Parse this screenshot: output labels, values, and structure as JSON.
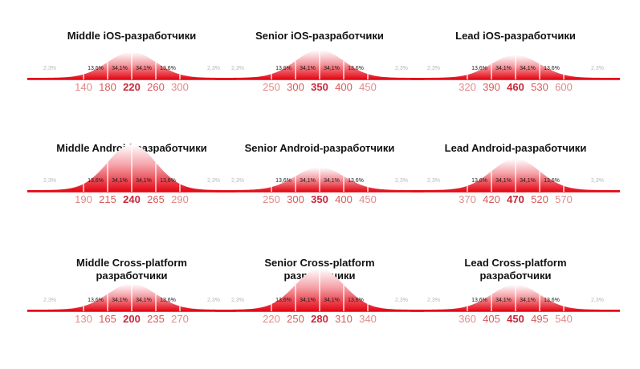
{
  "accent": "#e30613",
  "chart_data": [
    {
      "type": "area",
      "title_prefix": "Middle",
      "title_rest": " iOS-разработчики",
      "title_line2": "",
      "x_ticks": [
        "140",
        "180",
        "220",
        "260",
        "300"
      ],
      "segment_labels": [
        "2,3%",
        "13,6%",
        "34,1%",
        "34,1%",
        "13,6%",
        "2,3%"
      ]
    },
    {
      "type": "area",
      "title_prefix": "Senior",
      "title_rest": " iOS-разработчики",
      "title_line2": "",
      "x_ticks": [
        "250",
        "300",
        "350",
        "400",
        "450"
      ],
      "segment_labels": [
        "2,3%",
        "13,6%",
        "34,1%",
        "34,1%",
        "13,6%",
        "2,3%"
      ]
    },
    {
      "type": "area",
      "title_prefix": "Lead",
      "title_rest": " iOS-разработчики",
      "title_line2": "",
      "x_ticks": [
        "320",
        "390",
        "460",
        "530",
        "600"
      ],
      "segment_labels": [
        "2,3%",
        "13,6%",
        "34,1%",
        "34,1%",
        "13,6%",
        "2,3%"
      ]
    },
    {
      "type": "area",
      "title_prefix": "Middle",
      "title_rest": " Android-разработчики",
      "title_line2": "",
      "x_ticks": [
        "190",
        "215",
        "240",
        "265",
        "290"
      ],
      "segment_labels": [
        "2,3%",
        "13,6%",
        "34,1%",
        "34,1%",
        "13,6%",
        "2,3%"
      ]
    },
    {
      "type": "area",
      "title_prefix": "Senior",
      "title_rest": " Android-разработчики",
      "title_line2": "",
      "x_ticks": [
        "250",
        "300",
        "350",
        "400",
        "450"
      ],
      "segment_labels": [
        "2,3%",
        "13,6%",
        "34,1%",
        "34,1%",
        "13,6%",
        "2,3%"
      ]
    },
    {
      "type": "area",
      "title_prefix": "Lead",
      "title_rest": " Android-разработчики",
      "title_line2": "",
      "x_ticks": [
        "370",
        "420",
        "470",
        "520",
        "570"
      ],
      "segment_labels": [
        "2,3%",
        "13,6%",
        "34,1%",
        "34,1%",
        "13,6%",
        "2,3%"
      ]
    },
    {
      "type": "area",
      "title_prefix": "Middle",
      "title_rest": " Cross-platform",
      "title_line2": "разработчики",
      "x_ticks": [
        "130",
        "165",
        "200",
        "235",
        "270"
      ],
      "segment_labels": [
        "2,3%",
        "13,6%",
        "34,1%",
        "34,1%",
        "13,6%",
        "2,3%"
      ]
    },
    {
      "type": "area",
      "title_prefix": "Senior",
      "title_rest": " Cross-platform",
      "title_line2": "разработчики",
      "x_ticks": [
        "220",
        "250",
        "280",
        "310",
        "340"
      ],
      "segment_labels": [
        "2,3%",
        "13,6%",
        "34,1%",
        "34,1%",
        "13,6%",
        "2,3%"
      ]
    },
    {
      "type": "area",
      "title_prefix": "Lead",
      "title_rest": " Cross-platform",
      "title_line2": "разработчики",
      "x_ticks": [
        "360",
        "405",
        "450",
        "495",
        "540"
      ],
      "segment_labels": [
        "2,3%",
        "13,6%",
        "34,1%",
        "34,1%",
        "13,6%",
        "2,3%"
      ]
    }
  ]
}
